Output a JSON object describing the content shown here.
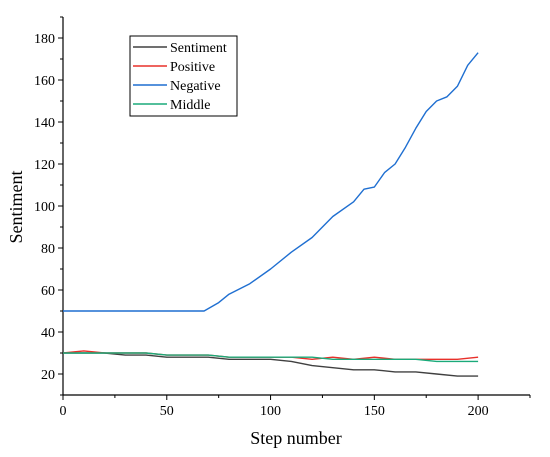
{
  "chart_data": {
    "type": "line",
    "xlabel": "Step number",
    "ylabel": "Sentiment",
    "xlim": [
      0,
      225
    ],
    "ylim": [
      10,
      190
    ],
    "xticks": [
      0,
      50,
      100,
      150,
      200
    ],
    "yticks": [
      20,
      40,
      60,
      80,
      100,
      120,
      140,
      160,
      180
    ],
    "grid": false,
    "legend_position": "top-left",
    "series": [
      {
        "name": "Sentiment",
        "color": "#404040",
        "x": [
          0,
          10,
          20,
          30,
          40,
          50,
          60,
          70,
          80,
          90,
          100,
          110,
          120,
          130,
          140,
          150,
          160,
          170,
          180,
          190,
          200
        ],
        "y": [
          30,
          30,
          30,
          29,
          29,
          28,
          28,
          28,
          27,
          27,
          27,
          26,
          24,
          23,
          22,
          22,
          21,
          21,
          20,
          19,
          19
        ]
      },
      {
        "name": "Positive",
        "color": "#e8302a",
        "x": [
          0,
          10,
          20,
          30,
          40,
          50,
          60,
          70,
          80,
          90,
          100,
          110,
          120,
          130,
          140,
          150,
          160,
          170,
          180,
          190,
          200
        ],
        "y": [
          30,
          31,
          30,
          30,
          30,
          29,
          29,
          29,
          28,
          28,
          28,
          28,
          27,
          28,
          27,
          28,
          27,
          27,
          27,
          27,
          28
        ]
      },
      {
        "name": "Negative",
        "color": "#1f6fd1",
        "x": [
          0,
          10,
          20,
          30,
          40,
          50,
          60,
          68,
          75,
          80,
          90,
          100,
          110,
          120,
          130,
          140,
          145,
          150,
          155,
          160,
          165,
          170,
          175,
          180,
          185,
          190,
          195,
          200
        ],
        "y": [
          50,
          50,
          50,
          50,
          50,
          50,
          50,
          50,
          54,
          58,
          63,
          70,
          78,
          85,
          95,
          102,
          108,
          109,
          116,
          120,
          128,
          137,
          145,
          150,
          152,
          157,
          167,
          173
        ]
      },
      {
        "name": "Middle",
        "color": "#1aaa7a",
        "x": [
          0,
          10,
          20,
          30,
          40,
          50,
          60,
          70,
          80,
          90,
          100,
          110,
          120,
          130,
          140,
          150,
          160,
          170,
          180,
          190,
          200
        ],
        "y": [
          30,
          30,
          30,
          30,
          30,
          29,
          29,
          29,
          28,
          28,
          28,
          28,
          28,
          27,
          27,
          27,
          27,
          27,
          26,
          26,
          26
        ]
      }
    ]
  }
}
